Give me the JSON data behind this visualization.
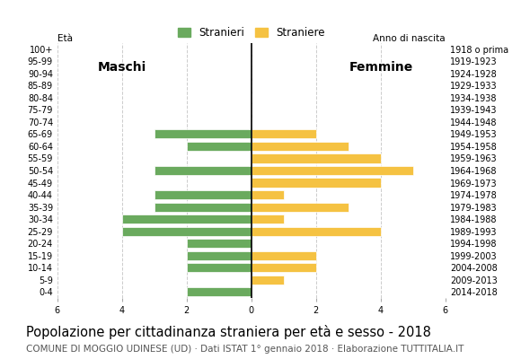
{
  "age_groups": [
    "100+",
    "95-99",
    "90-94",
    "85-89",
    "80-84",
    "75-79",
    "70-74",
    "65-69",
    "60-64",
    "55-59",
    "50-54",
    "45-49",
    "40-44",
    "35-39",
    "30-34",
    "25-29",
    "20-24",
    "15-19",
    "10-14",
    "5-9",
    "0-4"
  ],
  "birth_years": [
    "1918 o prima",
    "1919-1923",
    "1924-1928",
    "1929-1933",
    "1934-1938",
    "1939-1943",
    "1944-1948",
    "1949-1953",
    "1954-1958",
    "1959-1963",
    "1964-1968",
    "1969-1973",
    "1974-1978",
    "1979-1983",
    "1984-1988",
    "1989-1993",
    "1994-1998",
    "1999-2003",
    "2004-2008",
    "2009-2013",
    "2014-2018"
  ],
  "males": [
    0,
    0,
    0,
    0,
    0,
    0,
    0,
    3,
    2,
    0,
    3,
    0,
    3,
    3,
    4,
    4,
    2,
    2,
    2,
    0,
    2
  ],
  "females": [
    0,
    0,
    0,
    0,
    0,
    0,
    0,
    2,
    3,
    4,
    5,
    4,
    1,
    3,
    1,
    4,
    0,
    2,
    2,
    1,
    0
  ],
  "male_color": "#6aaa5e",
  "female_color": "#f5c242",
  "title": "Popolazione per cittadinanza straniera per età e sesso - 2018",
  "subtitle": "COMUNE DI MOGGIO UDINESE (UD) · Dati ISTAT 1° gennaio 2018 · Elaborazione TUTTITALIA.IT",
  "legend_male": "Stranieri",
  "legend_female": "Straniere",
  "xlim": 6,
  "background_color": "#ffffff",
  "grid_color": "#cccccc",
  "title_fontsize": 10.5,
  "subtitle_fontsize": 7.5,
  "tick_fontsize": 7,
  "label_fontsize": 7.5
}
